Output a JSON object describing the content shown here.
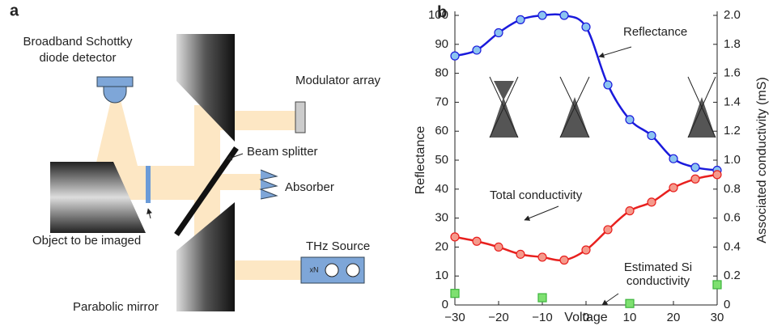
{
  "diagram": {
    "panel": "a",
    "detector": [
      "Broadband Schottky",
      "diode detector"
    ],
    "modulator": "Modulator array",
    "splitter": "Beam splitter",
    "absorber": "Absorber",
    "object": "Object to be imaged",
    "source": "THz  Source",
    "source_icon": "xN",
    "mirror": "Parabolic mirror"
  },
  "chart_data": {
    "type": "line",
    "panel": "b",
    "x_label": "Voltage",
    "y_label": "Reflectance",
    "y2_label": "Associated conductivity (mS)",
    "x": [
      -30,
      -25,
      -20,
      -15,
      -10,
      -5,
      0,
      5,
      10,
      15,
      20,
      25,
      30
    ],
    "xlim": [
      -30,
      30
    ],
    "xticks": [
      {
        "value": -30,
        "label": "−30"
      },
      {
        "value": -20,
        "label": "−20"
      },
      {
        "value": -10,
        "label": "−10"
      },
      0,
      10,
      20,
      30
    ],
    "ylim": [
      0,
      100
    ],
    "yticks": [
      0,
      10,
      20,
      30,
      40,
      50,
      60,
      70,
      80,
      90,
      100
    ],
    "y2lim": [
      0,
      2
    ],
    "y2ticks": [
      0,
      0.2,
      0.4,
      0.6,
      0.8,
      {
        "value": 1,
        "label": "1.0"
      },
      1.2,
      1.4,
      1.6,
      1.8,
      {
        "value": 2,
        "label": "2.0"
      }
    ],
    "series": [
      {
        "name": "Reflectance",
        "color": "#1a1adc",
        "marker_color": "#8cc4f0",
        "values": [
          86,
          88,
          94,
          98.5,
          100,
          100,
          96,
          76,
          64,
          58.5,
          50.5,
          47.5,
          46.5
        ]
      },
      {
        "name": "Total conductivity",
        "color": "#e8201e",
        "marker_color": "#f59a8c",
        "axis": "y2",
        "values": [
          0.47,
          0.44,
          0.4,
          0.35,
          0.33,
          0.31,
          0.38,
          0.52,
          0.65,
          0.71,
          0.81,
          0.87,
          0.9
        ]
      },
      {
        "name": "Estimated Si conductivity",
        "color": "#3cb43c",
        "marker_color": "#7ee070",
        "axis": "y2",
        "marker": "square",
        "values": [
          0.08,
          null,
          null,
          null,
          0.05,
          null,
          null,
          null,
          0.01,
          null,
          null,
          null,
          0.14
        ]
      }
    ]
  }
}
